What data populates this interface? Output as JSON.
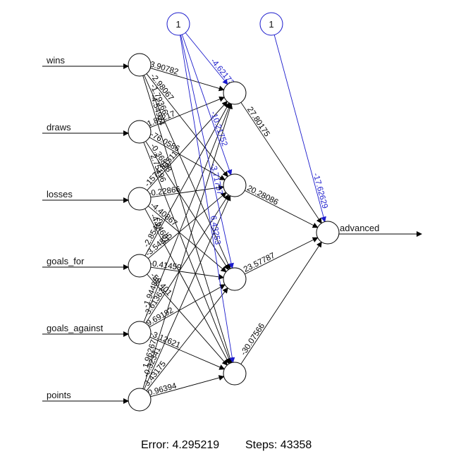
{
  "diagram": {
    "type": "neural-network",
    "inputs": [
      "wins",
      "draws",
      "losses",
      "goals_for",
      "goals_against",
      "points"
    ],
    "output": "advanced",
    "bias_labels": [
      "1",
      "1"
    ],
    "hidden_count": 4,
    "input_to_hidden_labels": [
      "3.90782",
      "-2.98067",
      "-1.79366",
      "-4.54924",
      "1.89217",
      "-76.0586",
      "-0.36898",
      "2.75196",
      "-1574.81511",
      "-0.22866",
      "-4.40867",
      "-4.24601",
      "-2.85463",
      "-3.54835",
      "-0.41459",
      "-59.401",
      "-1.94486",
      "-3.61363",
      "9.69192",
      "-3.12621",
      "1.96267",
      "-0.32341",
      "3.43175",
      "0.96394"
    ],
    "hidden_bias_labels": [
      "-4.62173",
      "-10.21752",
      "-3.71757",
      "6.43253"
    ],
    "hidden_to_output_labels": [
      "27.80175",
      "20.28086",
      "23.57787",
      "-30.07566"
    ],
    "output_bias_label": "-17.62629",
    "colors": {
      "edge": "#000000",
      "bias": "#1a1acc"
    }
  },
  "footer": {
    "error_label": "Error: 4.295219",
    "steps_label": "Steps: 43358"
  }
}
